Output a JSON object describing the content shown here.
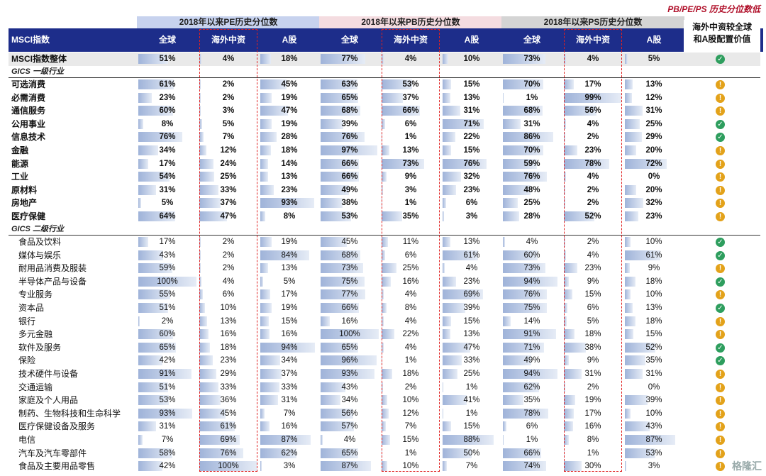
{
  "corner_note": "PB/PE/PS 历史分位数低",
  "group_headers": [
    "2018年以来PE历史分位数",
    "2018年以来PB历史分位数",
    "2018年以来PS历史分位数"
  ],
  "header": {
    "index_label": "MSCI指数",
    "sub_cols": [
      "全球",
      "海外中资",
      "A股",
      "全球",
      "海外中资",
      "A股",
      "全球",
      "海外中资",
      "A股"
    ],
    "conf_line1": "海外中资较全球",
    "conf_line2": "和A股配置价值"
  },
  "overall_row": {
    "name": "MSCI指数整体",
    "values": [
      "51%",
      "4%",
      "18%",
      "77%",
      "4%",
      "10%",
      "73%",
      "4%",
      "5%"
    ],
    "icon": "check-icon"
  },
  "section1_label": "GICS 一级行业",
  "level1_rows": [
    {
      "name": "可选消费",
      "values": [
        "61%",
        "2%",
        "45%",
        "63%",
        "53%",
        "15%",
        "70%",
        "17%",
        "13%"
      ],
      "icon": "warning-icon"
    },
    {
      "name": "必需消费",
      "values": [
        "23%",
        "2%",
        "19%",
        "65%",
        "37%",
        "13%",
        "1%",
        "99%",
        "12%"
      ],
      "icon": "warning-icon"
    },
    {
      "name": "通信服务",
      "values": [
        "60%",
        "3%",
        "47%",
        "68%",
        "66%",
        "31%",
        "68%",
        "56%",
        "31%"
      ],
      "icon": "warning-icon"
    },
    {
      "name": "公用事业",
      "values": [
        "8%",
        "5%",
        "19%",
        "39%",
        "6%",
        "71%",
        "31%",
        "4%",
        "25%"
      ],
      "icon": "check-icon"
    },
    {
      "name": "信息技术",
      "values": [
        "76%",
        "7%",
        "28%",
        "76%",
        "1%",
        "22%",
        "86%",
        "2%",
        "29%"
      ],
      "icon": "check-icon"
    },
    {
      "name": "金融",
      "values": [
        "34%",
        "12%",
        "18%",
        "97%",
        "13%",
        "15%",
        "70%",
        "23%",
        "20%"
      ],
      "icon": "warning-icon"
    },
    {
      "name": "能源",
      "values": [
        "17%",
        "24%",
        "14%",
        "66%",
        "73%",
        "76%",
        "59%",
        "78%",
        "72%"
      ],
      "icon": "warning-icon"
    },
    {
      "name": "工业",
      "values": [
        "54%",
        "25%",
        "13%",
        "66%",
        "9%",
        "32%",
        "76%",
        "4%",
        "0%"
      ],
      "icon": "warning-icon"
    },
    {
      "name": "原材料",
      "values": [
        "31%",
        "33%",
        "23%",
        "49%",
        "3%",
        "23%",
        "48%",
        "2%",
        "20%"
      ],
      "icon": "warning-icon"
    },
    {
      "name": "房地产",
      "values": [
        "5%",
        "37%",
        "93%",
        "38%",
        "1%",
        "6%",
        "25%",
        "2%",
        "32%"
      ],
      "icon": "warning-icon"
    },
    {
      "name": "医疗保健",
      "values": [
        "64%",
        "47%",
        "8%",
        "53%",
        "35%",
        "3%",
        "28%",
        "52%",
        "23%"
      ],
      "icon": "warning-icon"
    }
  ],
  "section2_label": "GICS 二级行业",
  "level2_rows": [
    {
      "name": "食品及饮料",
      "values": [
        "17%",
        "2%",
        "19%",
        "45%",
        "11%",
        "13%",
        "4%",
        "2%",
        "10%"
      ],
      "icon": "check-icon"
    },
    {
      "name": "媒体与娱乐",
      "values": [
        "43%",
        "2%",
        "84%",
        "68%",
        "6%",
        "61%",
        "60%",
        "4%",
        "61%"
      ],
      "icon": "check-icon"
    },
    {
      "name": "耐用品消费及服装",
      "values": [
        "59%",
        "2%",
        "13%",
        "73%",
        "25%",
        "4%",
        "73%",
        "23%",
        "9%"
      ],
      "icon": "warning-icon"
    },
    {
      "name": "半导体产品与设备",
      "values": [
        "100%",
        "4%",
        "5%",
        "75%",
        "16%",
        "23%",
        "94%",
        "9%",
        "18%"
      ],
      "icon": "check-icon"
    },
    {
      "name": "专业服务",
      "values": [
        "55%",
        "6%",
        "17%",
        "77%",
        "4%",
        "69%",
        "76%",
        "15%",
        "10%"
      ],
      "icon": "warning-icon"
    },
    {
      "name": "资本品",
      "values": [
        "51%",
        "10%",
        "19%",
        "66%",
        "8%",
        "39%",
        "75%",
        "6%",
        "13%"
      ],
      "icon": "check-icon"
    },
    {
      "name": "银行",
      "values": [
        "2%",
        "13%",
        "15%",
        "16%",
        "4%",
        "15%",
        "14%",
        "5%",
        "18%"
      ],
      "icon": "warning-icon"
    },
    {
      "name": "多元金融",
      "values": [
        "60%",
        "16%",
        "16%",
        "100%",
        "22%",
        "13%",
        "91%",
        "18%",
        "15%"
      ],
      "icon": "warning-icon"
    },
    {
      "name": "软件及服务",
      "values": [
        "65%",
        "18%",
        "94%",
        "65%",
        "4%",
        "47%",
        "71%",
        "38%",
        "52%"
      ],
      "icon": "check-icon"
    },
    {
      "name": "保险",
      "values": [
        "42%",
        "23%",
        "34%",
        "96%",
        "1%",
        "33%",
        "49%",
        "9%",
        "35%"
      ],
      "icon": "check-icon"
    },
    {
      "name": "技术硬件与设备",
      "values": [
        "91%",
        "29%",
        "37%",
        "93%",
        "18%",
        "25%",
        "94%",
        "31%",
        "31%"
      ],
      "icon": "warning-icon"
    },
    {
      "name": "交通运输",
      "values": [
        "51%",
        "33%",
        "33%",
        "43%",
        "2%",
        "1%",
        "62%",
        "2%",
        "0%"
      ],
      "icon": "warning-icon"
    },
    {
      "name": "家庭及个人用品",
      "values": [
        "53%",
        "36%",
        "31%",
        "34%",
        "10%",
        "41%",
        "35%",
        "19%",
        "39%"
      ],
      "icon": "warning-icon"
    },
    {
      "name": "制药、生物科技和生命科学",
      "values": [
        "93%",
        "45%",
        "7%",
        "56%",
        "12%",
        "1%",
        "78%",
        "17%",
        "10%"
      ],
      "icon": "warning-icon"
    },
    {
      "name": "医疗保健设备及服务",
      "values": [
        "31%",
        "61%",
        "16%",
        "57%",
        "7%",
        "15%",
        "6%",
        "16%",
        "43%"
      ],
      "icon": "warning-icon"
    },
    {
      "name": "电信",
      "values": [
        "7%",
        "69%",
        "87%",
        "4%",
        "15%",
        "88%",
        "1%",
        "8%",
        "87%"
      ],
      "icon": "warning-icon"
    },
    {
      "name": "汽车及汽车零部件",
      "values": [
        "58%",
        "76%",
        "62%",
        "65%",
        "1%",
        "50%",
        "66%",
        "1%",
        "53%"
      ],
      "icon": "warning-icon"
    },
    {
      "name": "食品及主要用品零售",
      "values": [
        "42%",
        "100%",
        "3%",
        "87%",
        "10%",
        "7%",
        "74%",
        "30%",
        "3%"
      ],
      "icon": "warning-icon"
    }
  ],
  "watermark": "格隆汇"
}
